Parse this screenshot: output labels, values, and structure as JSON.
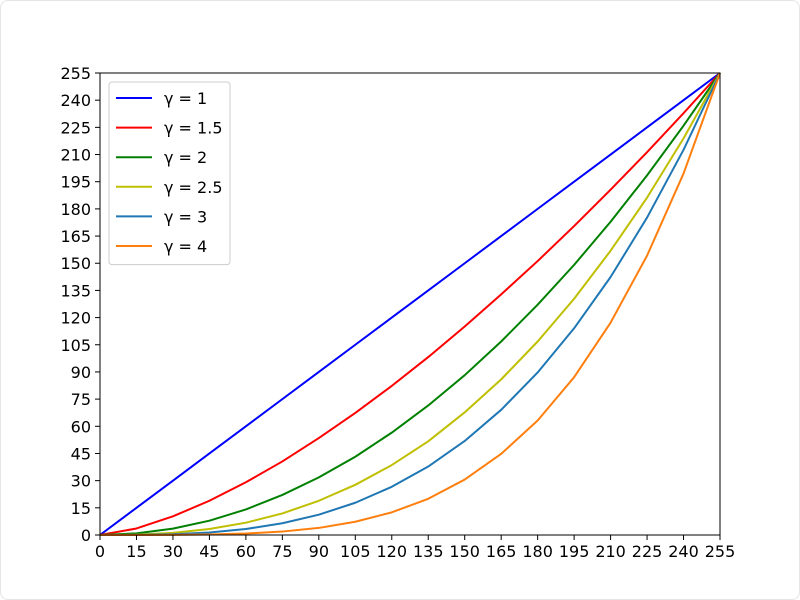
{
  "chart_data": {
    "type": "line",
    "title": "",
    "xlabel": "",
    "ylabel": "",
    "xlim": [
      0,
      255
    ],
    "ylim": [
      0,
      255
    ],
    "xticks": [
      0,
      15,
      30,
      45,
      60,
      75,
      90,
      105,
      120,
      135,
      150,
      165,
      180,
      195,
      210,
      225,
      240,
      255
    ],
    "yticks": [
      0,
      15,
      30,
      45,
      60,
      75,
      90,
      105,
      120,
      135,
      150,
      165,
      180,
      195,
      210,
      225,
      240,
      255
    ],
    "x": [
      0,
      15,
      30,
      45,
      60,
      75,
      90,
      105,
      120,
      135,
      150,
      165,
      180,
      195,
      210,
      225,
      240,
      255
    ],
    "series": [
      {
        "name": "γ = 1",
        "gamma": 1,
        "color": "#0000ff",
        "values": [
          0,
          15,
          30,
          45,
          60,
          75,
          90,
          105,
          120,
          135,
          150,
          165,
          180,
          195,
          210,
          225,
          240,
          255
        ]
      },
      {
        "name": "γ = 1.5",
        "gamma": 1.5,
        "color": "#ff0000",
        "values": [
          0,
          3.6,
          10.3,
          18.9,
          29.1,
          40.6,
          53.5,
          67.4,
          82.3,
          98.2,
          115.1,
          132.8,
          151.2,
          170.5,
          190.6,
          211.3,
          232.8,
          255
        ]
      },
      {
        "name": "γ = 2",
        "gamma": 2,
        "color": "#008000",
        "values": [
          0,
          0.9,
          3.5,
          7.9,
          14.1,
          22.1,
          31.8,
          43.2,
          56.5,
          71.5,
          88.2,
          106.8,
          127.1,
          149.1,
          172.9,
          198.5,
          225.9,
          255
        ]
      },
      {
        "name": "γ = 2.5",
        "gamma": 2.5,
        "color": "#bfbf00",
        "values": [
          0,
          0.2,
          1.2,
          3.3,
          6.8,
          11.9,
          18.9,
          27.7,
          38.6,
          51.7,
          67.7,
          85.9,
          106.8,
          130.4,
          156.9,
          186.2,
          218.9,
          255
        ]
      },
      {
        "name": "γ = 3",
        "gamma": 3,
        "color": "#1f77b4",
        "values": [
          0,
          0.05,
          0.4,
          1.4,
          3.3,
          6.5,
          11.2,
          17.8,
          26.6,
          37.8,
          51.9,
          69.1,
          89.7,
          114.1,
          142.4,
          175.2,
          212.6,
          255
        ]
      },
      {
        "name": "γ = 4",
        "gamma": 4,
        "color": "#ff7f0e",
        "values": [
          0,
          0.003,
          0.05,
          0.25,
          0.8,
          1.9,
          3.9,
          7.3,
          12.5,
          20.0,
          30.6,
          44.8,
          63.2,
          87.1,
          117.2,
          154.2,
          199.5,
          255
        ]
      }
    ],
    "legend": "top-left",
    "grid": false
  }
}
